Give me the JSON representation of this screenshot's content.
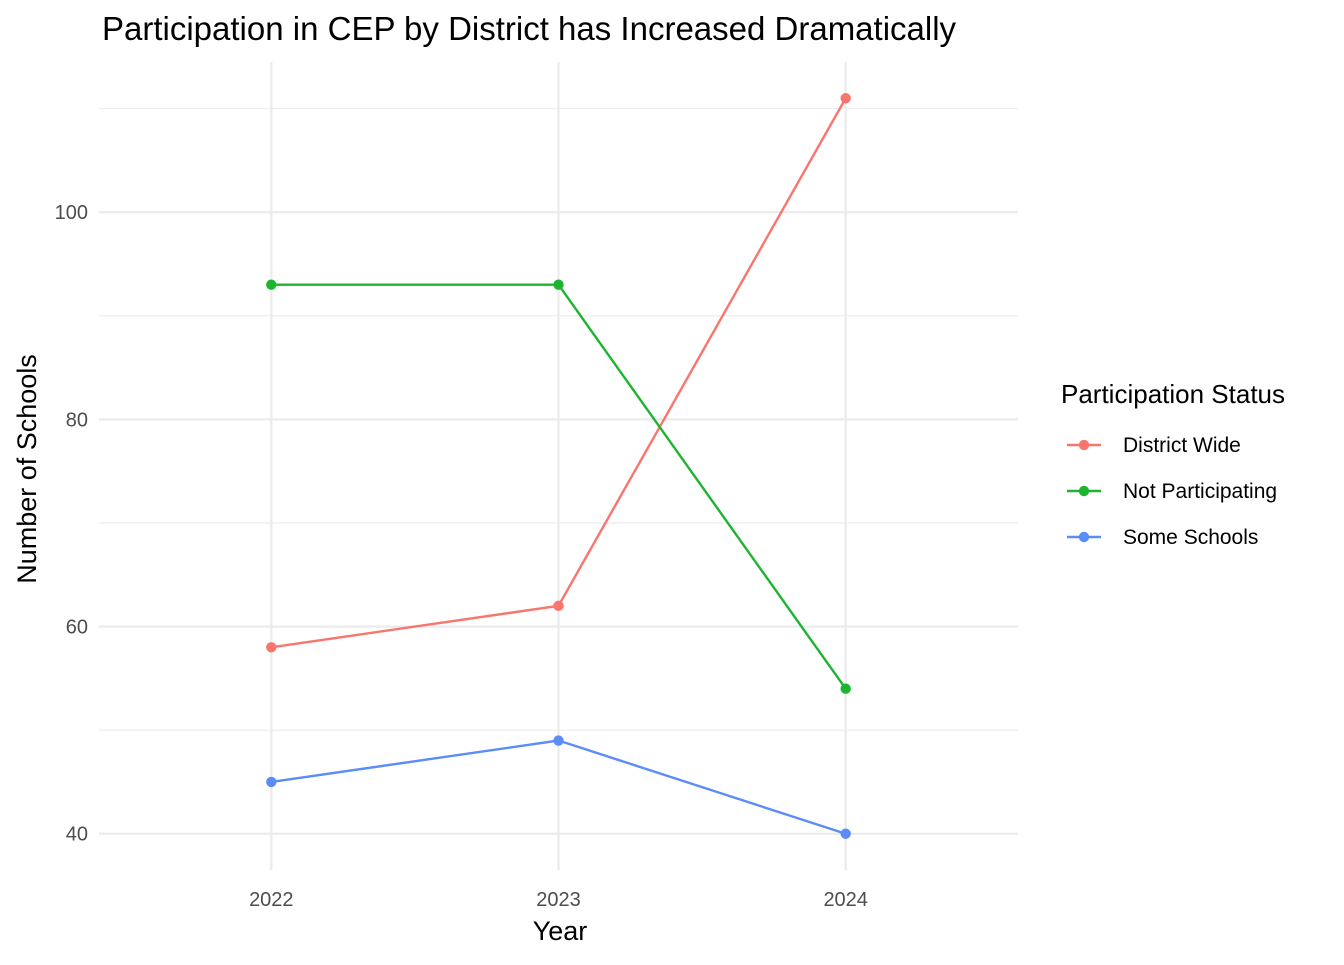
{
  "chart_data": {
    "type": "line",
    "title": "Participation in CEP by District has Increased Dramatically",
    "xlabel": "Year",
    "ylabel": "Number of Schools",
    "categories": [
      "2022",
      "2023",
      "2024"
    ],
    "x": [
      2022,
      2023,
      2024
    ],
    "y_ticks": [
      40,
      60,
      80,
      100
    ],
    "ylim": [
      36.5,
      114.5
    ],
    "xlim": [
      2021.4,
      2024.6
    ],
    "grid": true,
    "legend": {
      "title": "Participation Status",
      "placement": "right"
    },
    "series": [
      {
        "name": "District Wide",
        "color": "#f8766d",
        "values": [
          58,
          62,
          111
        ]
      },
      {
        "name": "Not Participating",
        "color": "#1db52f",
        "values": [
          93,
          93,
          54
        ]
      },
      {
        "name": "Some Schools",
        "color": "#5b8cf8",
        "values": [
          45,
          49,
          40
        ]
      }
    ]
  }
}
